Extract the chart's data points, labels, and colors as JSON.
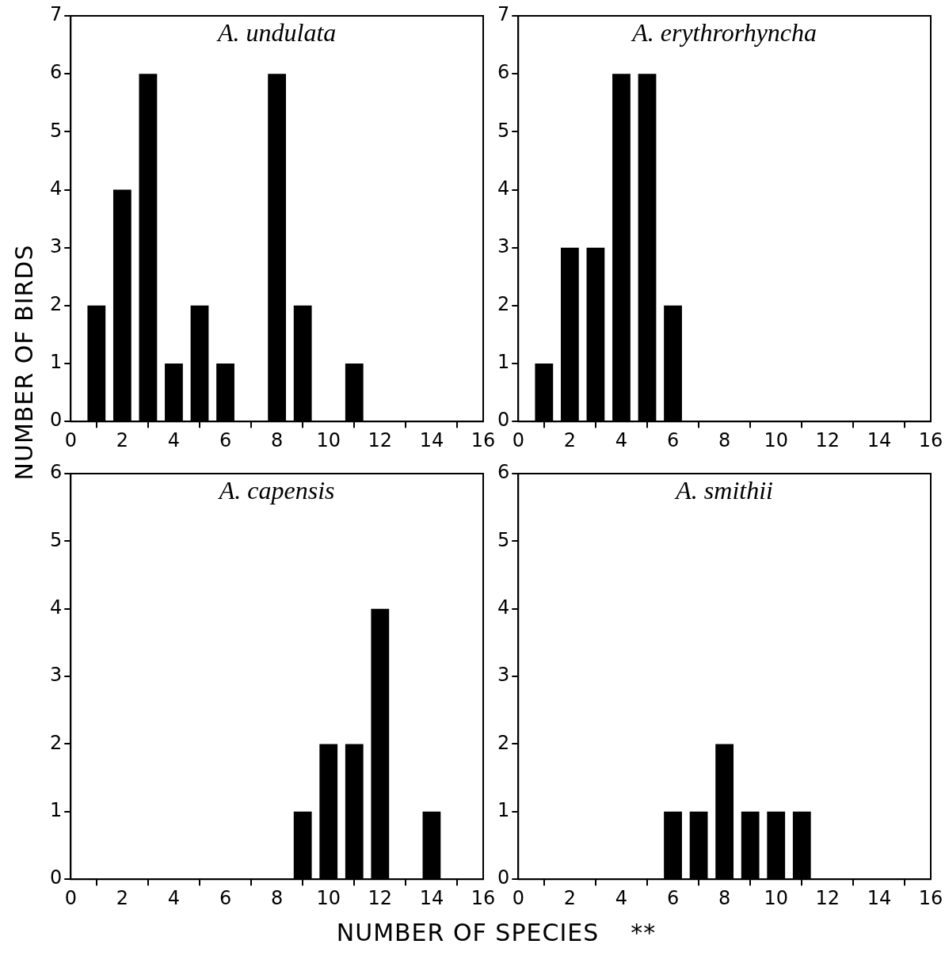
{
  "chart_data": [
    {
      "type": "bar",
      "title": "A. undulata",
      "ylabel": "NUMBER OF BIRDS",
      "x": [
        1,
        2,
        3,
        4,
        5,
        6,
        8,
        9,
        11
      ],
      "values": [
        2,
        4,
        6,
        1,
        2,
        1,
        6,
        2,
        1
      ],
      "color": "#000000",
      "xlim": [
        0,
        16
      ],
      "xticks": [
        0,
        2,
        4,
        6,
        8,
        10,
        12,
        14,
        16
      ],
      "ylim": [
        0,
        7
      ],
      "yticks": [
        0,
        1,
        2,
        3,
        4,
        5,
        6,
        7
      ]
    },
    {
      "type": "bar",
      "title": "A. erythrorhyncha",
      "x": [
        1,
        2,
        3,
        4,
        5,
        6
      ],
      "values": [
        1,
        3,
        3,
        6,
        6,
        2
      ],
      "color": "#000000",
      "xlim": [
        0,
        16
      ],
      "xticks": [
        0,
        2,
        4,
        6,
        8,
        10,
        12,
        14,
        16
      ],
      "ylim": [
        0,
        7
      ],
      "yticks": [
        0,
        1,
        2,
        3,
        4,
        5,
        6,
        7
      ]
    },
    {
      "type": "bar",
      "title": "A. capensis",
      "xlabel": "NUMBER OF SPECIES",
      "annotations": [
        "**"
      ],
      "x": [
        9,
        10,
        11,
        12,
        14
      ],
      "values": [
        1,
        2,
        2,
        4,
        1
      ],
      "color": "#000000",
      "xlim": [
        0,
        16
      ],
      "xticks": [
        0,
        2,
        4,
        6,
        8,
        10,
        12,
        14,
        16
      ],
      "ylim": [
        0,
        6
      ],
      "yticks": [
        0,
        1,
        2,
        3,
        4,
        5,
        6
      ]
    },
    {
      "type": "bar",
      "title": "A. smithii",
      "x": [
        6,
        7,
        8,
        9,
        10,
        11
      ],
      "values": [
        1,
        1,
        2,
        1,
        1,
        1
      ],
      "color": "#000000",
      "xlim": [
        0,
        16
      ],
      "xticks": [
        0,
        2,
        4,
        6,
        8,
        10,
        12,
        14,
        16
      ],
      "ylim": [
        0,
        6
      ],
      "yticks": [
        0,
        1,
        2,
        3,
        4,
        5,
        6
      ]
    }
  ]
}
